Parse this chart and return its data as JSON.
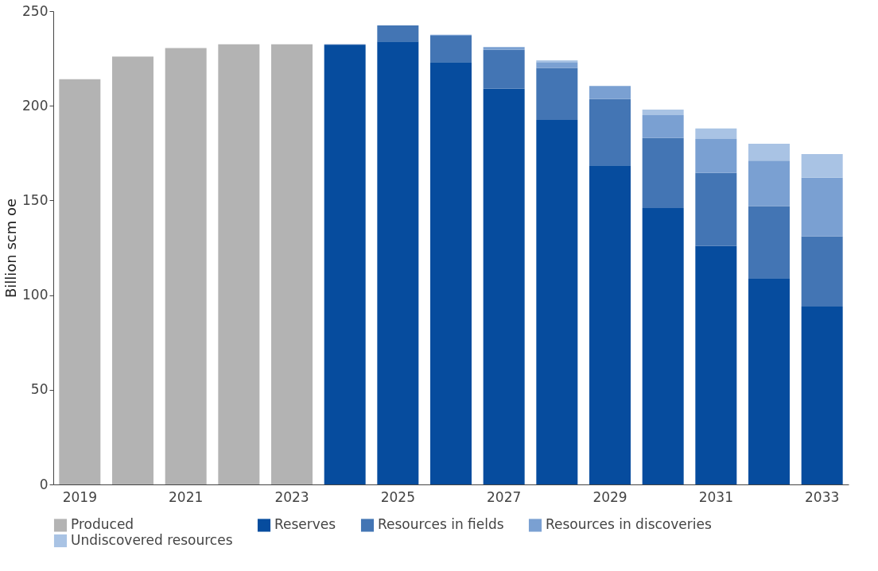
{
  "chart_data": {
    "type": "bar",
    "stacked": true,
    "ylabel": "Billion scm oe",
    "categories": [
      "2019",
      null,
      "2021",
      null,
      "2023",
      null,
      "2025",
      null,
      "2027",
      null,
      "2029",
      null,
      "2031",
      null,
      "2033"
    ],
    "series": [
      {
        "name": "Produced",
        "color": "#b3b3b3",
        "values": [
          214,
          226,
          230.5,
          232.5,
          232.5,
          null,
          null,
          null,
          null,
          null,
          null,
          null,
          null,
          null,
          null
        ]
      },
      {
        "name": "Reserves",
        "color": "#064c9e",
        "values": [
          null,
          null,
          null,
          null,
          null,
          232,
          234,
          223,
          209,
          192.5,
          168.5,
          146,
          126,
          109,
          94
        ]
      },
      {
        "name": "Resources in fields",
        "color": "#4375b4",
        "values": [
          null,
          null,
          null,
          null,
          null,
          0.5,
          8.5,
          14,
          20.5,
          27.5,
          35,
          37,
          38.5,
          38,
          37
        ]
      },
      {
        "name": "Resources in discoveries",
        "color": "#7aa0d2",
        "values": [
          null,
          null,
          null,
          null,
          null,
          null,
          null,
          0.5,
          1.5,
          3,
          7,
          12,
          18,
          24,
          31
        ]
      },
      {
        "name": "Undiscovered resources",
        "color": "#a9c3e4",
        "values": [
          null,
          null,
          null,
          null,
          null,
          null,
          null,
          null,
          null,
          1,
          null,
          3,
          5.5,
          9,
          12.5
        ]
      }
    ],
    "ylim": [
      0,
      250
    ],
    "yticks": [
      0,
      50,
      100,
      150,
      200,
      250
    ],
    "grid": false,
    "legend": "bottom"
  }
}
